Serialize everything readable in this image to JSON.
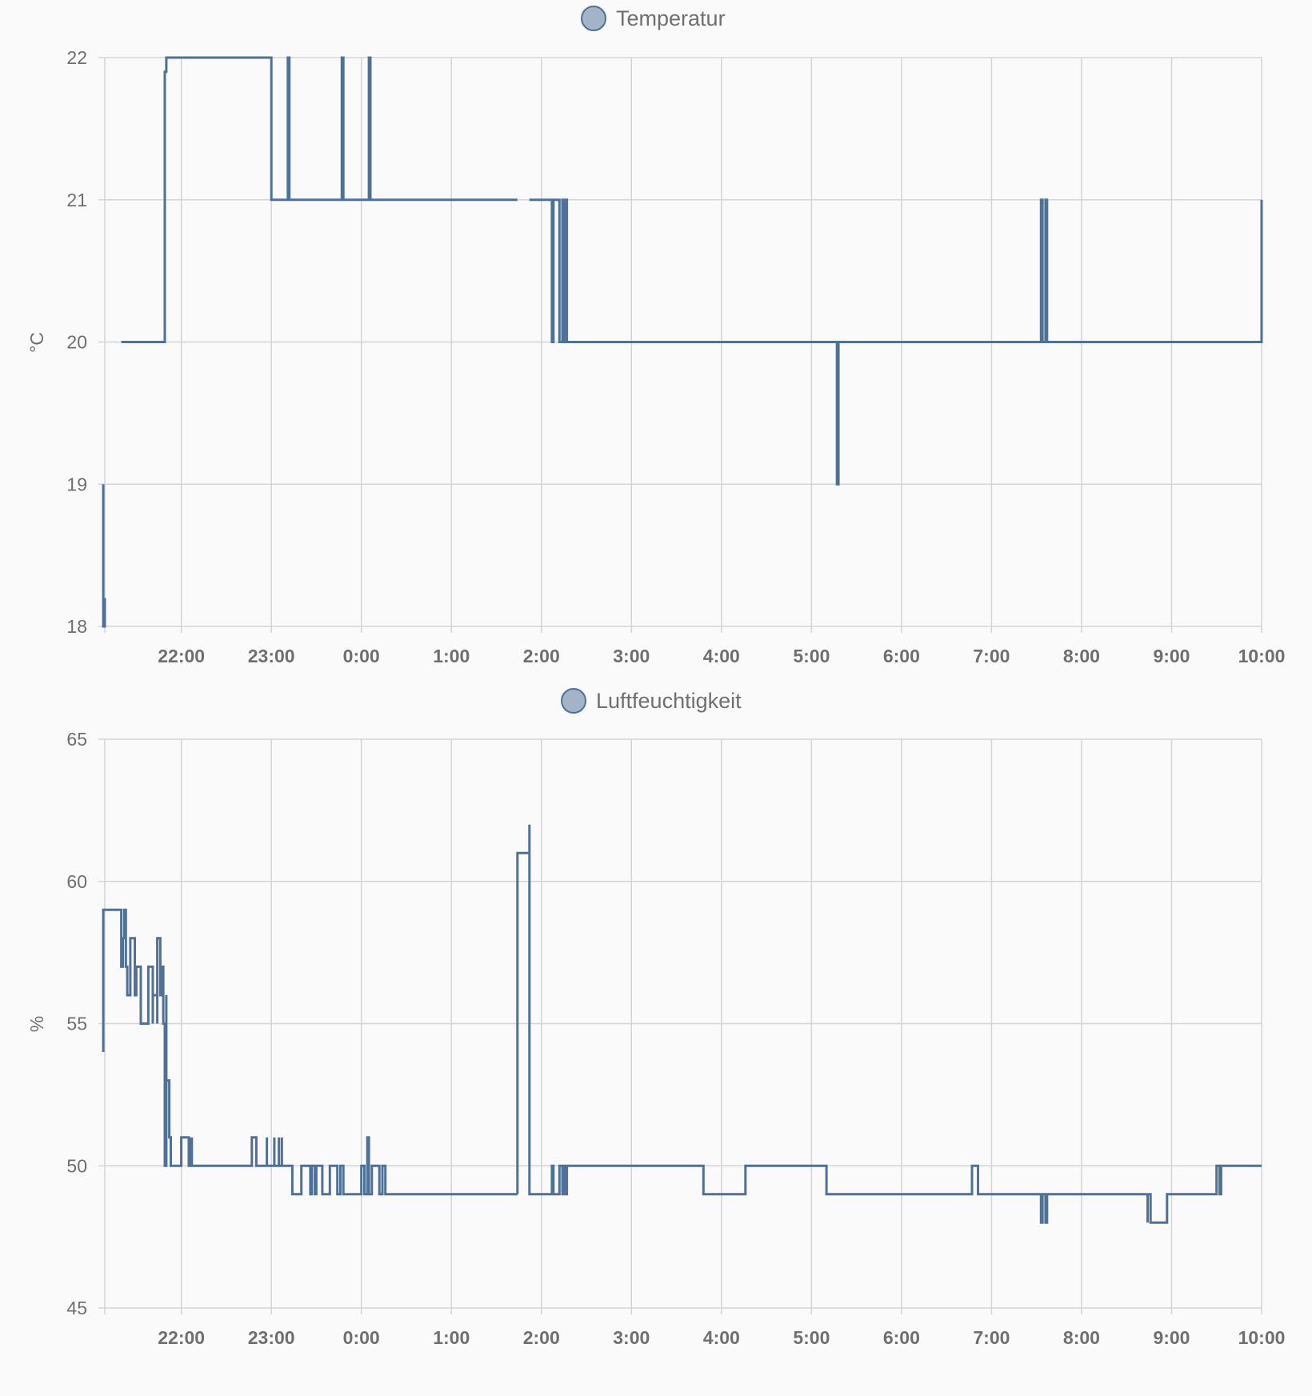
{
  "chart_data": [
    {
      "type": "line",
      "title": "",
      "legend": {
        "label": "Temperatur",
        "position": "top-center"
      },
      "ylabel": "°C",
      "xlabel": "",
      "ylim": [
        18,
        22
      ],
      "yticks": [
        "18",
        "19",
        "20",
        "21",
        "22"
      ],
      "xlim": [
        "21:09",
        "10:00"
      ],
      "xticks": [
        "22:00",
        "23:00",
        "0:00",
        "1:00",
        "2:00",
        "3:00",
        "4:00",
        "5:00",
        "6:00",
        "7:00",
        "8:00",
        "9:00",
        "10:00"
      ],
      "grid": true,
      "step": true,
      "color": "#4f7097",
      "series": [
        {
          "x": [
            "21:08",
            "21:08",
            "21:09",
            "21:09",
            "21:09"
          ],
          "values": [
            19,
            18,
            18.2,
            18,
            18
          ]
        },
        {
          "x": [
            "21:20",
            "21:49",
            "21:49",
            "21:50",
            "23:00",
            "23:00",
            "23:11",
            "23:11",
            "23:12",
            "23:12",
            "23:47",
            "23:47",
            "23:48",
            "23:48",
            "0:05",
            "0:05",
            "0:06",
            "0:06",
            "1:44"
          ],
          "values": [
            20,
            20,
            21.9,
            22,
            22,
            21,
            21,
            22,
            22,
            21,
            21,
            22,
            22,
            21,
            21,
            22,
            22,
            21,
            21
          ]
        },
        {
          "x": [
            "1:52",
            "2:07",
            "2:07",
            "2:08",
            "2:08",
            "2:12",
            "2:12",
            "2:14",
            "2:14",
            "2:15",
            "2:15",
            "2:16",
            "2:16",
            "2:17",
            "2:17",
            "5:17",
            "5:17",
            "5:18",
            "5:18",
            "7:33",
            "7:33",
            "7:34",
            "7:34",
            "7:36",
            "7:36",
            "7:37",
            "7:37",
            "10:00"
          ],
          "values": [
            21,
            21,
            20,
            20,
            21,
            21,
            20,
            20,
            21,
            21,
            20,
            20,
            21,
            21,
            20,
            20,
            19,
            19,
            20,
            20,
            21,
            21,
            20,
            20,
            21,
            21,
            20,
            21
          ]
        }
      ]
    },
    {
      "type": "line",
      "title": "",
      "legend": {
        "label": "Luftfeuchtigkeit",
        "position": "top-center"
      },
      "ylabel": "%",
      "xlabel": "",
      "ylim": [
        45,
        65
      ],
      "yticks": [
        "45",
        "50",
        "55",
        "60",
        "65"
      ],
      "xlim": [
        "21:09",
        "10:00"
      ],
      "xticks": [
        "22:00",
        "23:00",
        "0:00",
        "1:00",
        "2:00",
        "3:00",
        "4:00",
        "5:00",
        "6:00",
        "7:00",
        "8:00",
        "9:00",
        "10:00"
      ],
      "grid": true,
      "step": true,
      "color": "#4f7097",
      "series": [
        {
          "x": [
            "21:08",
            "21:08",
            "21:09",
            "21:10",
            "21:20",
            "21:20",
            "21:21",
            "21:22",
            "21:23",
            "21:24",
            "21:26",
            "21:26",
            "21:29",
            "21:29",
            "21:30",
            "21:31",
            "21:33",
            "21:33",
            "21:38",
            "21:38",
            "21:39",
            "21:41",
            "21:41",
            "21:44",
            "21:44",
            "21:46",
            "21:46",
            "21:47",
            "21:48",
            "21:48",
            "21:49",
            "21:50",
            "21:50",
            "21:52",
            "21:52",
            "21:53",
            "21:54",
            "21:55",
            "21:55",
            "22:00",
            "22:00",
            "22:05",
            "22:05",
            "22:06",
            "22:06",
            "22:07",
            "22:07",
            "22:08",
            "22:08",
            "22:09",
            "22:09",
            "22:47",
            "22:47",
            "22:50",
            "22:50",
            "22:57",
            "22:57",
            "23:02",
            "23:02",
            "23:05",
            "23:05",
            "23:07",
            "23:07",
            "23:08",
            "23:08",
            "23:14",
            "23:14",
            "23:20",
            "23:20",
            "23:26",
            "23:26",
            "23:27",
            "23:27",
            "23:29",
            "23:29",
            "23:30",
            "23:30",
            "23:34",
            "23:34",
            "23:39",
            "23:39",
            "23:44",
            "23:44",
            "23:46",
            "23:46",
            "23:48",
            "23:48",
            "0:00",
            "0:00",
            "0:02",
            "0:02",
            "0:04",
            "0:04",
            "0:05",
            "0:05",
            "0:07",
            "0:07",
            "0:12",
            "0:12",
            "0:14",
            "0:14",
            "0:16",
            "0:16",
            "1:44"
          ],
          "values": [
            54,
            59,
            59,
            59,
            58,
            57,
            58,
            59,
            57,
            56,
            56,
            58,
            58,
            56,
            57,
            57,
            55,
            55,
            55,
            57,
            57,
            55,
            56,
            55,
            58,
            57,
            56,
            57,
            57,
            55,
            50,
            56,
            53,
            52,
            51,
            50,
            50,
            50,
            50,
            50,
            51,
            51,
            50,
            51,
            50,
            51,
            50,
            50,
            50,
            50,
            50,
            50,
            51,
            51,
            50,
            51,
            50,
            51,
            50,
            51,
            50,
            51,
            50,
            50,
            50,
            50,
            49,
            49,
            50,
            50,
            49,
            49,
            50,
            50,
            49,
            49,
            50,
            50,
            49,
            49,
            50,
            50,
            49,
            49,
            50,
            50,
            49,
            49,
            50,
            50,
            49,
            49,
            51,
            51,
            49,
            49,
            50,
            50,
            49,
            49,
            50,
            50,
            49,
            49
          ]
        },
        {
          "x": [
            "1:44",
            "1:44",
            "1:52",
            "1:52",
            "2:07",
            "2:07",
            "2:08",
            "2:08",
            "2:12",
            "2:12",
            "2:14",
            "2:14",
            "2:15",
            "2:15",
            "2:16",
            "2:16",
            "2:17",
            "2:17",
            "3:48",
            "3:48",
            "4:16",
            "4:16",
            "5:10",
            "5:10",
            "6:47",
            "6:47",
            "6:51",
            "6:51",
            "7:33",
            "7:33",
            "7:34",
            "7:34",
            "7:36",
            "7:36",
            "7:37",
            "7:37",
            "8:44",
            "8:44",
            "8:46",
            "8:46",
            "8:57",
            "8:57",
            "9:30",
            "9:30",
            "9:32",
            "9:32",
            "9:33",
            "9:33",
            "10:00"
          ],
          "values": [
            49,
            61,
            62,
            49,
            49,
            50,
            50,
            49,
            49,
            50,
            50,
            49,
            49,
            50,
            50,
            49,
            49,
            50,
            50,
            49,
            49,
            50,
            50,
            49,
            49,
            50,
            50,
            49,
            49,
            48,
            48,
            49,
            49,
            48,
            48,
            49,
            48,
            49,
            49,
            48,
            48,
            49,
            49,
            50,
            50,
            49,
            49,
            50,
            50
          ]
        }
      ]
    }
  ]
}
